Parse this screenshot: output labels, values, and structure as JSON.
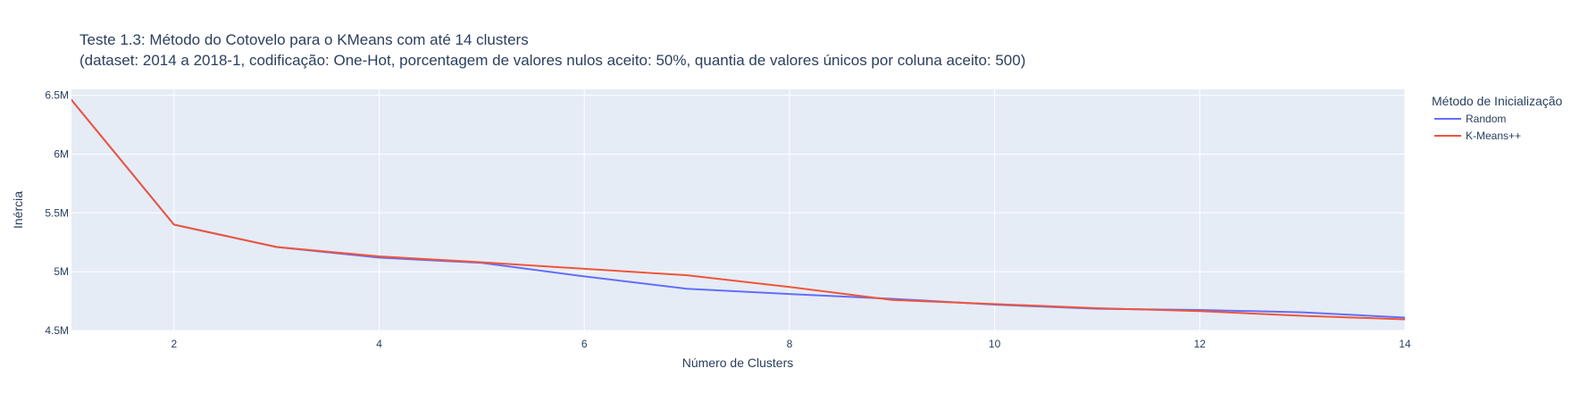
{
  "chart_data": {
    "type": "line",
    "title": "Teste 1.3: Método do Cotovelo para o KMeans com até 14 clusters",
    "subtitle": "(dataset: 2014 a 2018-1, codificação: One-Hot, porcentagem de valores nulos aceito: 50%, quantia de valores únicos por coluna aceito: 500)",
    "xlabel": "Número de Clusters",
    "ylabel": "Inércia",
    "xlim": [
      1,
      14
    ],
    "ylim": [
      4500000,
      6550000
    ],
    "x_ticks": [
      2,
      4,
      6,
      8,
      10,
      12,
      14
    ],
    "x_tick_labels": [
      "2",
      "4",
      "6",
      "8",
      "10",
      "12",
      "14"
    ],
    "y_ticks": [
      4500000,
      5000000,
      5500000,
      6000000,
      6500000
    ],
    "y_tick_labels": [
      "4.5M",
      "5M",
      "5.5M",
      "6M",
      "6.5M"
    ],
    "grid": true,
    "legend_position": "right",
    "legend_title": "Método de Inicialização",
    "x": [
      1,
      2,
      3,
      4,
      5,
      6,
      7,
      8,
      9,
      10,
      11,
      12,
      13,
      14
    ],
    "series": [
      {
        "name": "Random",
        "color": "#636efa",
        "values": [
          6460000,
          5400000,
          5210000,
          5120000,
          5075000,
          4960000,
          4855000,
          4810000,
          4770000,
          4720000,
          4685000,
          4675000,
          4655000,
          4610000
        ]
      },
      {
        "name": "K-Means++",
        "color": "#ef553b",
        "values": [
          6460000,
          5400000,
          5210000,
          5130000,
          5080000,
          5025000,
          4970000,
          4870000,
          4760000,
          4725000,
          4690000,
          4665000,
          4625000,
          4595000
        ]
      }
    ],
    "colors": {
      "plot_background": "#e5ecf6",
      "grid": "#ffffff",
      "text": "#2a3f5f"
    }
  }
}
